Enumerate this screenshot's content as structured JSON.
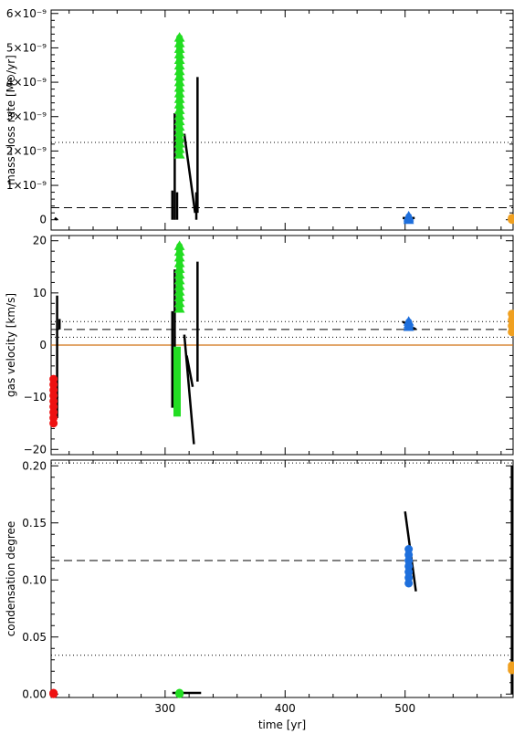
{
  "chart_data": {
    "type": "scatter",
    "shared_x": {
      "label": "time [yr]",
      "ticks": [
        300,
        400,
        500
      ],
      "range": [
        205,
        590
      ]
    },
    "panels": [
      {
        "id": "mass-loss",
        "ylabel": "mass−loss rate [M⊙/yr]",
        "yrange": [
          -3e-10,
          6.1e-09
        ],
        "ticks": [
          {
            "v": 0,
            "label": "0"
          },
          {
            "v": 1e-09,
            "label": "1×10⁻⁹"
          },
          {
            "v": 2e-09,
            "label": "2×10⁻⁹"
          },
          {
            "v": 3e-09,
            "label": "3×10⁻⁹"
          },
          {
            "v": 4e-09,
            "label": "4×10⁻⁹"
          },
          {
            "v": 5e-09,
            "label": "5×10⁻⁹"
          },
          {
            "v": 6e-09,
            "label": "6×10⁻⁹"
          }
        ],
        "hlines": [
          {
            "y": 2.25e-09,
            "style": "dotted"
          },
          {
            "y": 3.5e-10,
            "style": "dashed"
          }
        ],
        "segments": [
          {
            "color": "#000000",
            "pts": [
              [
                208,
                5e-11
              ],
              [
                210,
                0.0
              ]
            ]
          },
          {
            "color": "#000000",
            "pts": [
              [
                306,
                8.5e-10
              ],
              [
                306,
                0.0
              ]
            ]
          },
          {
            "color": "#000000",
            "pts": [
              [
                308,
                3.1e-09
              ],
              [
                308,
                0.0
              ]
            ]
          },
          {
            "color": "#000000",
            "pts": [
              [
                310,
                8e-10
              ],
              [
                310,
                0.0
              ]
            ]
          },
          {
            "color": "#000000",
            "pts": [
              [
                316,
                2.5e-09
              ],
              [
                325,
                2e-10
              ]
            ]
          },
          {
            "color": "#000000",
            "pts": [
              [
                326,
                8e-10
              ],
              [
                326,
                0.0
              ]
            ]
          },
          {
            "color": "#000000",
            "pts": [
              [
                327,
                4.15e-09
              ],
              [
                327,
                2e-10
              ]
            ]
          },
          {
            "color": "#000000",
            "pts": [
              [
                498,
                5e-11
              ],
              [
                508,
                5e-11
              ]
            ]
          }
        ],
        "markers": [
          {
            "color": "#22dd22",
            "x": 312,
            "y0": 1.9e-09,
            "y1": 5.3e-09,
            "shape": "triangle"
          },
          {
            "color": "#1e6fdc",
            "x": 503,
            "y0": 0.0,
            "y1": 1e-10,
            "shape": "triangle"
          },
          {
            "color": "#f0a020",
            "x": 589,
            "y0": 0.0,
            "y1": 5e-11,
            "shape": "circle"
          }
        ]
      },
      {
        "id": "gas-velocity",
        "ylabel": "gas velocity [km/s]",
        "yrange": [
          -21,
          21
        ],
        "ticks": [
          {
            "v": -20,
            "label": "−20"
          },
          {
            "v": -10,
            "label": "−10"
          },
          {
            "v": 0,
            "label": "0"
          },
          {
            "v": 10,
            "label": "10"
          },
          {
            "v": 20,
            "label": "20"
          }
        ],
        "hlines": [
          {
            "y": 4.5,
            "style": "dotted"
          },
          {
            "y": 3.0,
            "style": "dashed"
          },
          {
            "y": 1.5,
            "style": "dotted"
          },
          {
            "y": 0.0,
            "style": "solid",
            "color": "#d07010"
          }
        ],
        "segments": [
          {
            "color": "#000000",
            "pts": [
              [
                210,
                9.5
              ],
              [
                210,
                -14
              ]
            ]
          },
          {
            "color": "#000000",
            "pts": [
              [
                212,
                5
              ],
              [
                212,
                3
              ]
            ]
          },
          {
            "color": "#000000",
            "pts": [
              [
                306,
                6.5
              ],
              [
                306,
                -12
              ]
            ]
          },
          {
            "color": "#000000",
            "pts": [
              [
                308,
                14.5
              ],
              [
                308,
                -10
              ]
            ]
          },
          {
            "color": "#000000",
            "pts": [
              [
                316,
                2
              ],
              [
                324,
                -19
              ]
            ]
          },
          {
            "color": "#000000",
            "pts": [
              [
                318,
                -2
              ],
              [
                323,
                -8
              ]
            ]
          },
          {
            "color": "#000000",
            "pts": [
              [
                327,
                16
              ],
              [
                327,
                -7
              ]
            ]
          },
          {
            "color": "#000000",
            "pts": [
              [
                498,
                4.5
              ],
              [
                509,
                3
              ]
            ]
          },
          {
            "color": "#000000",
            "pts": [
              [
                588,
                6
              ],
              [
                591,
                3
              ]
            ]
          }
        ],
        "markers": [
          {
            "color": "#ee1111",
            "x": 207,
            "y0": -15,
            "y1": -6.5,
            "shape": "circle"
          },
          {
            "color": "#22dd22",
            "x": 312,
            "y0": 7,
            "y1": 19,
            "shape": "triangle"
          },
          {
            "color": "#22dd22",
            "x": 310,
            "y0": -13,
            "y1": -1,
            "shape": "square"
          },
          {
            "color": "#1e6fdc",
            "x": 503,
            "y0": 3.5,
            "y1": 4.5,
            "shape": "triangle"
          },
          {
            "color": "#f0a020",
            "x": 589,
            "y0": 2.5,
            "y1": 6,
            "shape": "circle"
          }
        ]
      },
      {
        "id": "condensation",
        "ylabel": "condensation degree",
        "yrange": [
          -0.003,
          0.205
        ],
        "ticks": [
          {
            "v": 0.0,
            "label": "0.00"
          },
          {
            "v": 0.05,
            "label": "0.05"
          },
          {
            "v": 0.1,
            "label": "0.10"
          },
          {
            "v": 0.15,
            "label": "0.15"
          },
          {
            "v": 0.2,
            "label": "0.20"
          }
        ],
        "hlines": [
          {
            "y": 0.2025,
            "style": "dotted"
          },
          {
            "y": 0.117,
            "style": "dashed"
          },
          {
            "y": 0.034,
            "style": "dotted"
          }
        ],
        "segments": [
          {
            "color": "#000000",
            "pts": [
              [
                306,
                0.001
              ],
              [
                330,
                0.001
              ]
            ]
          },
          {
            "color": "#000000",
            "pts": [
              [
                500,
                0.16
              ],
              [
                509,
                0.09
              ]
            ]
          },
          {
            "color": "#000000",
            "pts": [
              [
                589,
                0.2
              ],
              [
                589,
                0.0
              ]
            ]
          }
        ],
        "markers": [
          {
            "color": "#ee1111",
            "x": 207,
            "y0": 0.0,
            "y1": 0.001,
            "shape": "circle"
          },
          {
            "color": "#22dd22",
            "x": 312,
            "y0": 0.0,
            "y1": 0.001,
            "shape": "circle"
          },
          {
            "color": "#1e6fdc",
            "x": 503,
            "y0": 0.097,
            "y1": 0.127,
            "shape": "circle"
          },
          {
            "color": "#f0a020",
            "x": 589,
            "y0": 0.021,
            "y1": 0.025,
            "shape": "circle"
          }
        ]
      }
    ]
  }
}
